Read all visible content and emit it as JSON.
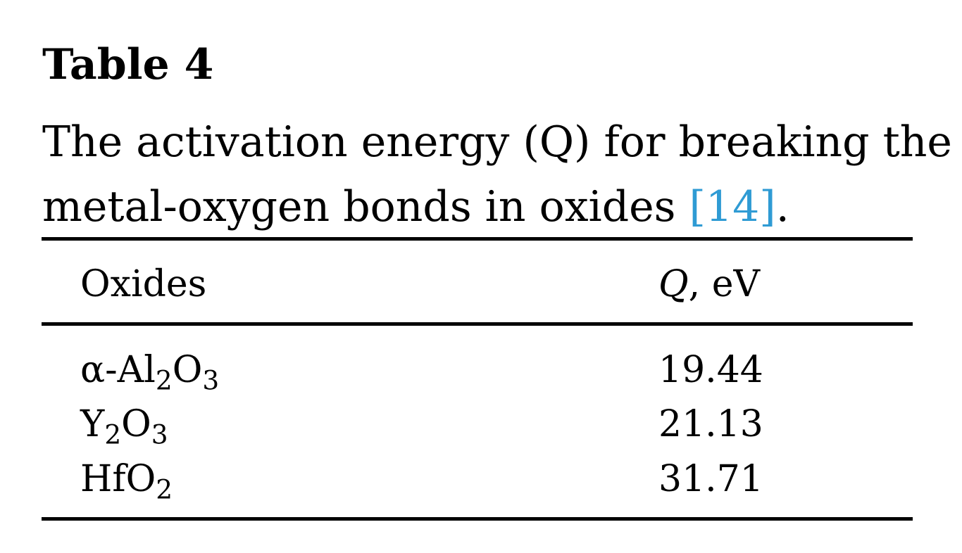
{
  "table": {
    "label": "Table 4",
    "caption_line1": "The activation energy (Q) for breaking the",
    "caption_line2_text": "metal-oxygen bonds in oxides ",
    "caption_ref": "[14]",
    "caption_end": ".",
    "ref_color": "#2f9bd4",
    "header": {
      "oxides": "Oxides",
      "q_symbol": "Q",
      "q_unit": ", eV"
    },
    "rows": [
      {
        "oxide_parts": [
          {
            "text": "α-Al"
          },
          {
            "text": "2",
            "sub": true
          },
          {
            "text": "O"
          },
          {
            "text": "3",
            "sub": true
          }
        ],
        "q": "19.44"
      },
      {
        "oxide_parts": [
          {
            "text": "Y"
          },
          {
            "text": "2",
            "sub": true
          },
          {
            "text": "O"
          },
          {
            "text": "3",
            "sub": true
          }
        ],
        "q": "21.13"
      },
      {
        "oxide_parts": [
          {
            "text": "HfO"
          },
          {
            "text": "2",
            "sub": true
          }
        ],
        "q": "31.71"
      }
    ]
  }
}
